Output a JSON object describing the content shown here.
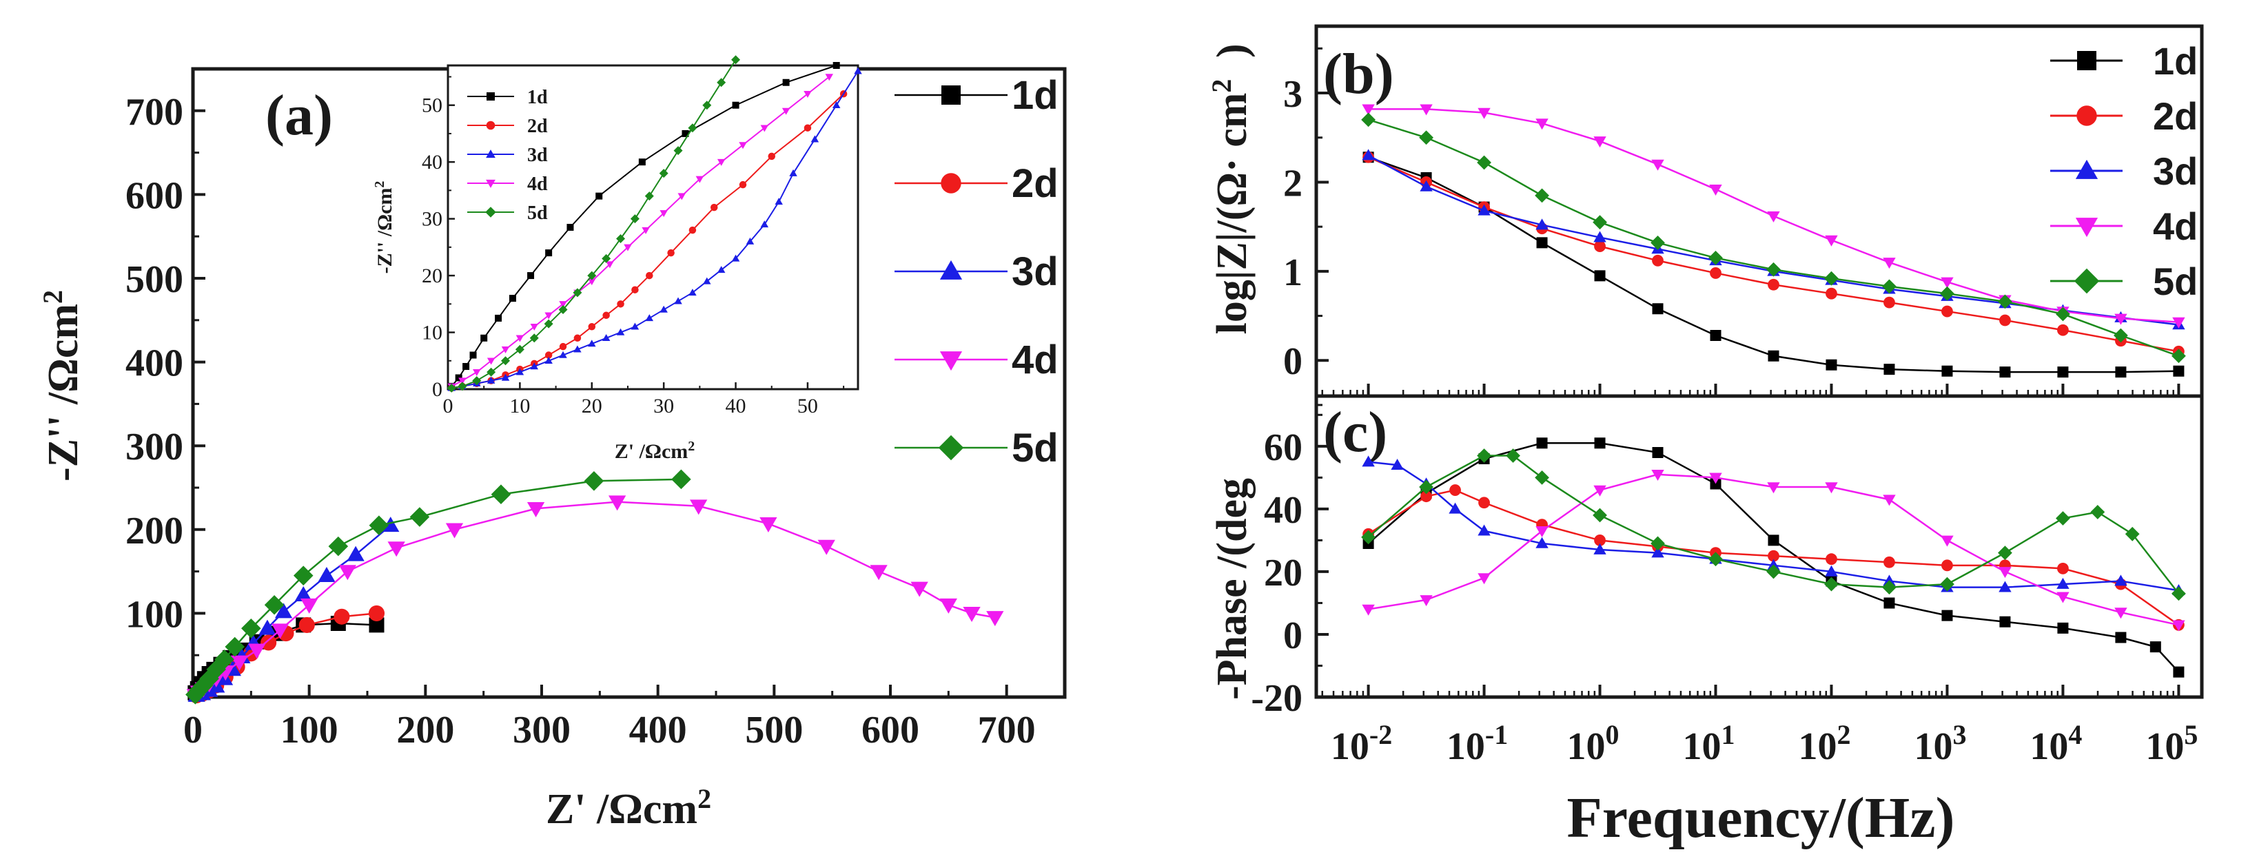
{
  "colors": {
    "1d": "#000000",
    "2d": "#ee1c1c",
    "3d": "#1b1ee6",
    "4d": "#f01cf0",
    "5d": "#1c8a1c"
  },
  "chart_data": [
    {
      "id": "a",
      "type": "scatter",
      "panel_label": "(a)",
      "xlabel": "Z' /Ωcm²",
      "ylabel": "-Z'' /Ωcm²",
      "xlim": [
        0,
        750
      ],
      "ylim": [
        0,
        750
      ],
      "xticks": [
        0,
        100,
        200,
        300,
        400,
        500,
        600,
        700
      ],
      "yticks": [
        100,
        200,
        300,
        400,
        500,
        600,
        700
      ],
      "legend_position": "right-outside",
      "series": [
        {
          "name": "1d",
          "marker": "square",
          "x": [
            2,
            4,
            7,
            10,
            14,
            18,
            24,
            32,
            42,
            55,
            72,
            95,
            125,
            158
          ],
          "y": [
            5,
            10,
            16,
            22,
            28,
            33,
            39,
            47,
            56,
            66,
            76,
            86,
            88,
            86
          ]
        },
        {
          "name": "2d",
          "marker": "circle",
          "x": [
            3,
            8,
            14,
            20,
            28,
            38,
            50,
            65,
            80,
            98,
            128,
            158
          ],
          "y": [
            2,
            4,
            8,
            14,
            24,
            36,
            52,
            65,
            76,
            86,
            96,
            100
          ]
        },
        {
          "name": "3d",
          "marker": "triangle-up",
          "x": [
            3,
            8,
            14,
            20,
            27,
            34,
            42,
            52,
            64,
            78,
            95,
            115,
            140,
            170
          ],
          "y": [
            2,
            4,
            8,
            13,
            22,
            33,
            48,
            64,
            82,
            102,
            122,
            145,
            170,
            205
          ]
        },
        {
          "name": "4d",
          "marker": "triangle-down",
          "x": [
            2,
            5,
            9,
            14,
            20,
            28,
            40,
            55,
            75,
            100,
            133,
            175,
            225,
            295,
            365,
            435,
            495,
            545,
            590,
            625,
            650,
            670,
            690
          ],
          "y": [
            2,
            6,
            10,
            16,
            22,
            30,
            42,
            56,
            80,
            110,
            150,
            178,
            200,
            225,
            233,
            228,
            207,
            180,
            150,
            130,
            110,
            100,
            95
          ]
        },
        {
          "name": "5d",
          "marker": "diamond",
          "x": [
            2,
            5,
            9,
            14,
            20,
            27,
            36,
            50,
            70,
            95,
            125,
            160,
            195,
            265,
            345,
            420
          ],
          "y": [
            3,
            8,
            14,
            22,
            33,
            45,
            60,
            82,
            110,
            145,
            180,
            205,
            215,
            242,
            258,
            260
          ]
        }
      ]
    },
    {
      "id": "a-inset",
      "type": "scatter",
      "xlabel": "Z' /Ωcm²",
      "ylabel": "-Z'' /Ωcm²",
      "xlim": [
        0,
        57
      ],
      "ylim": [
        0,
        57
      ],
      "xticks": [
        0,
        10,
        20,
        30,
        40,
        50
      ],
      "yticks": [
        0,
        10,
        20,
        30,
        40,
        50
      ],
      "legend_position": "top-left",
      "series": [
        {
          "name": "1d",
          "marker": "square",
          "x": [
            0.5,
            1.5,
            2.5,
            3.5,
            5,
            7,
            9,
            11.5,
            14,
            17,
            21,
            27,
            33,
            40,
            47,
            54
          ],
          "y": [
            0.5,
            2,
            4,
            6,
            9,
            12.5,
            16,
            20,
            24,
            28.5,
            34,
            40,
            45,
            50,
            54,
            57
          ]
        },
        {
          "name": "2d",
          "marker": "circle",
          "x": [
            0.5,
            2,
            4,
            6,
            8,
            10,
            12,
            14,
            16,
            18,
            20,
            22,
            24,
            26,
            28,
            31,
            34,
            37,
            41,
            45,
            50,
            55
          ],
          "y": [
            0.2,
            0.5,
            1,
            1.5,
            2.5,
            3.5,
            4.5,
            6,
            7.5,
            9,
            11,
            13,
            15,
            17.5,
            20,
            24,
            28,
            32,
            36,
            41,
            46,
            52
          ]
        },
        {
          "name": "3d",
          "marker": "triangle-up",
          "x": [
            0.5,
            2,
            4,
            6,
            8,
            10,
            12,
            14,
            16,
            18,
            20,
            22,
            24,
            26,
            28,
            30,
            32,
            34,
            36,
            38,
            40,
            42,
            44,
            46,
            48,
            51,
            54,
            57
          ],
          "y": [
            0.2,
            0.5,
            1,
            1.5,
            2,
            3,
            4,
            5,
            6,
            7,
            8,
            9,
            10,
            11,
            12.5,
            14,
            15.5,
            17,
            19,
            21,
            23,
            26,
            29,
            33,
            38,
            44,
            50,
            56
          ]
        },
        {
          "name": "4d",
          "marker": "triangle-down",
          "x": [
            0.5,
            2,
            4,
            6,
            8,
            10,
            12,
            14,
            16,
            18,
            20,
            22.5,
            25,
            27.5,
            30,
            32.5,
            35,
            38,
            41,
            44,
            47,
            50,
            53
          ],
          "y": [
            0.5,
            1.5,
            3,
            5,
            7,
            9,
            11,
            13,
            15,
            17,
            19,
            22,
            25,
            28,
            31,
            34,
            37,
            40,
            43,
            46,
            49,
            52,
            55
          ]
        },
        {
          "name": "5d",
          "marker": "diamond",
          "x": [
            0.5,
            2,
            4,
            6,
            8,
            10,
            12,
            14,
            16,
            18,
            20,
            22,
            24,
            26,
            28,
            30,
            32,
            34,
            36,
            38,
            40
          ],
          "y": [
            0.2,
            0.5,
            1.5,
            3,
            5,
            7,
            9,
            11.5,
            14,
            17,
            20,
            23,
            26.5,
            30,
            34,
            38,
            42,
            46,
            50,
            54,
            58
          ]
        }
      ]
    },
    {
      "id": "b",
      "type": "line",
      "panel_label": "(b)",
      "xlabel": "Frequency/(Hz)",
      "ylabel": "log|Z|/(Ω· cm²)",
      "xscale": "log",
      "xlim": [
        -2.45,
        5.2
      ],
      "ylim": [
        -0.4,
        3.75
      ],
      "yticks": [
        0,
        1,
        2,
        3
      ],
      "legend_position": "top-right",
      "series": [
        {
          "name": "1d",
          "marker": "square",
          "logf": [
            -2,
            -1.5,
            -1,
            -0.5,
            0,
            0.5,
            1,
            1.5,
            2,
            2.5,
            3,
            3.5,
            4,
            4.5,
            5
          ],
          "values": [
            2.28,
            2.05,
            1.72,
            1.32,
            0.95,
            0.58,
            0.28,
            0.05,
            -0.05,
            -0.1,
            -0.12,
            -0.13,
            -0.13,
            -0.13,
            -0.12
          ]
        },
        {
          "name": "2d",
          "marker": "circle",
          "logf": [
            -2,
            -1.5,
            -1,
            -0.5,
            0,
            0.5,
            1,
            1.5,
            2,
            2.5,
            3,
            3.5,
            4,
            4.5,
            5
          ],
          "values": [
            2.28,
            2.0,
            1.72,
            1.48,
            1.28,
            1.12,
            0.98,
            0.85,
            0.75,
            0.65,
            0.55,
            0.45,
            0.34,
            0.22,
            0.1
          ]
        },
        {
          "name": "3d",
          "marker": "triangle-up",
          "logf": [
            -2,
            -1.5,
            -1,
            -0.5,
            0,
            0.5,
            1,
            1.5,
            2,
            2.5,
            3,
            3.5,
            4,
            4.5,
            5
          ],
          "values": [
            2.3,
            1.95,
            1.68,
            1.52,
            1.38,
            1.25,
            1.12,
            1.0,
            0.9,
            0.8,
            0.72,
            0.64,
            0.56,
            0.48,
            0.4
          ]
        },
        {
          "name": "4d",
          "marker": "triangle-down",
          "logf": [
            -2,
            -1.5,
            -1,
            -0.5,
            0,
            0.5,
            1,
            1.5,
            2,
            2.5,
            3,
            3.5,
            4,
            4.5,
            5
          ],
          "values": [
            2.82,
            2.82,
            2.78,
            2.66,
            2.46,
            2.2,
            1.92,
            1.62,
            1.35,
            1.1,
            0.88,
            0.68,
            0.55,
            0.47,
            0.43
          ]
        },
        {
          "name": "5d",
          "marker": "diamond",
          "logf": [
            -2,
            -1.5,
            -1,
            -0.5,
            0,
            0.5,
            1,
            1.5,
            2,
            2.5,
            3,
            3.5,
            4,
            4.5,
            5
          ],
          "values": [
            2.7,
            2.5,
            2.22,
            1.85,
            1.55,
            1.32,
            1.15,
            1.02,
            0.92,
            0.83,
            0.75,
            0.66,
            0.52,
            0.28,
            0.05
          ]
        }
      ]
    },
    {
      "id": "c",
      "type": "line",
      "panel_label": "(c)",
      "xlabel": "Frequency/(Hz)",
      "ylabel": "-Phase /(deg",
      "xscale": "log",
      "xlim": [
        -2.45,
        5.2
      ],
      "ylim": [
        -20,
        76
      ],
      "xticks": [
        {
          "base": "10",
          "exp": "-2",
          "pos": -2
        },
        {
          "base": "10",
          "exp": "-1",
          "pos": -1
        },
        {
          "base": "10",
          "exp": "0",
          "pos": 0
        },
        {
          "base": "10",
          "exp": "1",
          "pos": 1
        },
        {
          "base": "10",
          "exp": "2",
          "pos": 2
        },
        {
          "base": "10",
          "exp": "3",
          "pos": 3
        },
        {
          "base": "10",
          "exp": "4",
          "pos": 4
        },
        {
          "base": "10",
          "exp": "5",
          "pos": 5
        }
      ],
      "yticks": [
        -20,
        0,
        20,
        40,
        60
      ],
      "series": [
        {
          "name": "1d",
          "marker": "square",
          "logf": [
            -2,
            -1.5,
            -1,
            -0.5,
            0,
            0.5,
            1,
            1.5,
            2,
            2.5,
            3,
            3.5,
            4,
            4.5,
            4.8,
            5
          ],
          "values": [
            29,
            45,
            56,
            61,
            61,
            58,
            48,
            30,
            17,
            10,
            6,
            4,
            2,
            -1,
            -4,
            -12
          ]
        },
        {
          "name": "2d",
          "marker": "circle",
          "logf": [
            -2,
            -1.5,
            -1.25,
            -1,
            -0.5,
            0,
            0.5,
            1,
            1.5,
            2,
            2.5,
            3,
            3.5,
            4,
            4.5,
            5
          ],
          "values": [
            32,
            44,
            46,
            42,
            35,
            30,
            28,
            26,
            25,
            24,
            23,
            22,
            22,
            21,
            16,
            3
          ]
        },
        {
          "name": "3d",
          "marker": "triangle-up",
          "logf": [
            -2,
            -1.75,
            -1.5,
            -1.25,
            -1,
            -0.5,
            0,
            0.5,
            1,
            1.5,
            2,
            2.5,
            3,
            3.5,
            4,
            4.5,
            5
          ],
          "values": [
            55,
            54,
            48,
            40,
            33,
            29,
            27,
            26,
            24,
            22,
            20,
            17,
            15,
            15,
            16,
            17,
            14
          ]
        },
        {
          "name": "4d",
          "marker": "triangle-down",
          "logf": [
            -2,
            -1.5,
            -1,
            -0.5,
            0,
            0.5,
            1,
            1.5,
            2,
            2.5,
            3,
            3.5,
            4,
            4.5,
            5
          ],
          "values": [
            8,
            11,
            18,
            33,
            46,
            51,
            50,
            47,
            47,
            43,
            30,
            20,
            12,
            7,
            3
          ]
        },
        {
          "name": "5d",
          "marker": "diamond",
          "logf": [
            -2,
            -1.5,
            -1,
            -0.75,
            -0.5,
            0,
            0.5,
            1,
            1.5,
            2,
            2.5,
            3,
            3.5,
            4,
            4.3,
            4.6,
            5
          ],
          "values": [
            31,
            47,
            57,
            57,
            50,
            38,
            29,
            24,
            20,
            16,
            15,
            16,
            26,
            37,
            39,
            32,
            13
          ]
        }
      ]
    }
  ]
}
